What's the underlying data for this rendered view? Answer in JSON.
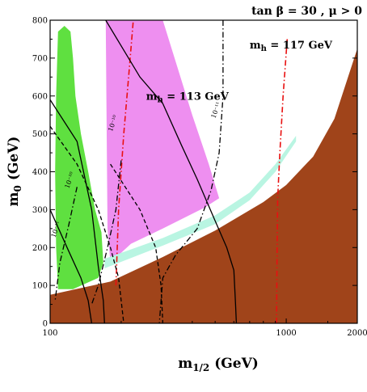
{
  "chart_data": {
    "type": "contour",
    "title": "tan β = 30 ,  μ > 0",
    "xlabel": "m",
    "xlabel_sub": "1/2",
    "xlabel_unit": " (GeV)",
    "ylabel": "m",
    "ylabel_sub": "0",
    "ylabel_unit": " (GeV)",
    "xscale": "log",
    "xlim": [
      100,
      2000
    ],
    "ylim": [
      0,
      800
    ],
    "xticks": [
      100,
      1000,
      2000
    ],
    "xtick_labels": [
      "100",
      "1000",
      "2000"
    ],
    "yticks": [
      0,
      100,
      200,
      300,
      400,
      500,
      600,
      700,
      800
    ],
    "ytick_labels": [
      "0",
      "100",
      "200",
      "300",
      "400",
      "500",
      "600",
      "700",
      "800"
    ],
    "grid": false,
    "colors": {
      "brown": "#a0441a",
      "pink": "#ee8ff0",
      "green": "#5fe040",
      "cyan": "#b9f5e2",
      "red": "#e81010",
      "black": "#000000"
    },
    "regions": [
      {
        "color": "brown",
        "points": [
          [
            100,
            75
          ],
          [
            180,
            110
          ],
          [
            300,
            175
          ],
          [
            500,
            245
          ],
          [
            800,
            320
          ],
          [
            1000,
            365
          ],
          [
            1300,
            440
          ],
          [
            1600,
            540
          ],
          [
            2000,
            725
          ],
          [
            2000,
            0
          ],
          [
            100,
            0
          ]
        ]
      },
      {
        "color": "pink",
        "points": [
          [
            172,
            800
          ],
          [
            300,
            800
          ],
          [
            400,
            550
          ],
          [
            470,
            420
          ],
          [
            520,
            330
          ],
          [
            450,
            305
          ],
          [
            300,
            250
          ],
          [
            220,
            210
          ],
          [
            180,
            160
          ],
          [
            175,
            250
          ]
        ]
      },
      {
        "color": "cyan",
        "points": [
          [
            170,
            170
          ],
          [
            300,
            225
          ],
          [
            500,
            285
          ],
          [
            700,
            345
          ],
          [
            900,
            420
          ],
          [
            1100,
            495
          ],
          [
            1100,
            480
          ],
          [
            900,
            400
          ],
          [
            700,
            325
          ],
          [
            500,
            262
          ],
          [
            300,
            205
          ],
          [
            170,
            145
          ]
        ]
      },
      {
        "color": "green",
        "points": [
          [
            108,
            770
          ],
          [
            115,
            785
          ],
          [
            122,
            770
          ],
          [
            125,
            700
          ],
          [
            128,
            600
          ],
          [
            135,
            500
          ],
          [
            145,
            400
          ],
          [
            155,
            300
          ],
          [
            165,
            240
          ],
          [
            168,
            160
          ],
          [
            160,
            120
          ],
          [
            125,
            90
          ],
          [
            108,
            90
          ],
          [
            106,
            200
          ],
          [
            105,
            400
          ],
          [
            106,
            600
          ]
        ]
      }
    ],
    "lines": [
      {
        "style": "dashdot",
        "color": "red",
        "points": [
          [
            190,
            100
          ],
          [
            195,
            300
          ],
          [
            205,
            500
          ],
          [
            215,
            650
          ],
          [
            225,
            800
          ]
        ]
      },
      {
        "style": "dashdot",
        "color": "red",
        "points": [
          [
            910,
            0
          ],
          [
            915,
            200
          ],
          [
            920,
            330
          ],
          [
            940,
            450
          ],
          [
            970,
            600
          ],
          [
            1010,
            750
          ]
        ]
      },
      {
        "style": "solid",
        "color": "black",
        "points": [
          [
            172,
            800
          ],
          [
            240,
            650
          ],
          [
            300,
            580
          ],
          [
            360,
            470
          ],
          [
            420,
            380
          ],
          [
            500,
            270
          ],
          [
            560,
            200
          ],
          [
            600,
            140
          ],
          [
            610,
            50
          ],
          [
            615,
            0
          ]
        ]
      },
      {
        "style": "solid",
        "color": "black",
        "points": [
          [
            100,
            590
          ],
          [
            130,
            480
          ],
          [
            150,
            300
          ],
          [
            160,
            150
          ],
          [
            168,
            60
          ],
          [
            170,
            0
          ]
        ]
      },
      {
        "style": "solid",
        "color": "black",
        "points": [
          [
            100,
            300
          ],
          [
            118,
            200
          ],
          [
            135,
            120
          ],
          [
            145,
            60
          ],
          [
            150,
            0
          ]
        ]
      },
      {
        "style": "dashdot",
        "color": "black",
        "points": [
          [
            540,
            800
          ],
          [
            540,
            600
          ],
          [
            520,
            450
          ],
          [
            480,
            350
          ],
          [
            420,
            250
          ],
          [
            340,
            180
          ],
          [
            300,
            120
          ],
          [
            290,
            0
          ]
        ]
      },
      {
        "style": "dashdot",
        "color": "black",
        "points": [
          [
            200,
            430
          ],
          [
            190,
            300
          ],
          [
            175,
            200
          ],
          [
            160,
            100
          ],
          [
            150,
            50
          ]
        ]
      },
      {
        "style": "dashdot",
        "color": "black",
        "points": [
          [
            130,
            360
          ],
          [
            120,
            260
          ],
          [
            110,
            160
          ],
          [
            105,
            60
          ]
        ]
      },
      {
        "style": "dashed",
        "color": "black",
        "points": [
          [
            100,
            520
          ],
          [
            130,
            420
          ],
          [
            160,
            300
          ],
          [
            180,
            200
          ],
          [
            195,
            120
          ],
          [
            205,
            0
          ]
        ]
      },
      {
        "style": "dashed",
        "color": "black",
        "points": [
          [
            180,
            420
          ],
          [
            240,
            300
          ],
          [
            280,
            200
          ],
          [
            295,
            100
          ],
          [
            300,
            0
          ]
        ]
      }
    ],
    "annotations": [
      {
        "text": "m",
        "sub": "h",
        "rest": " = 117 GeV",
        "x": 700,
        "y": 725
      },
      {
        "text": "m",
        "sub": "h",
        "rest": " = 113 GeV",
        "x": 255,
        "y": 590
      }
    ],
    "contour_labels": [
      {
        "text": "10⁻¹⁰",
        "x": 183,
        "y": 505
      },
      {
        "text": "10⁻¹¹",
        "x": 500,
        "y": 540
      },
      {
        "text": "10⁻¹⁰",
        "x": 120,
        "y": 355
      },
      {
        "text": "10⁻¹¹",
        "x": 105,
        "y": 225
      }
    ]
  }
}
